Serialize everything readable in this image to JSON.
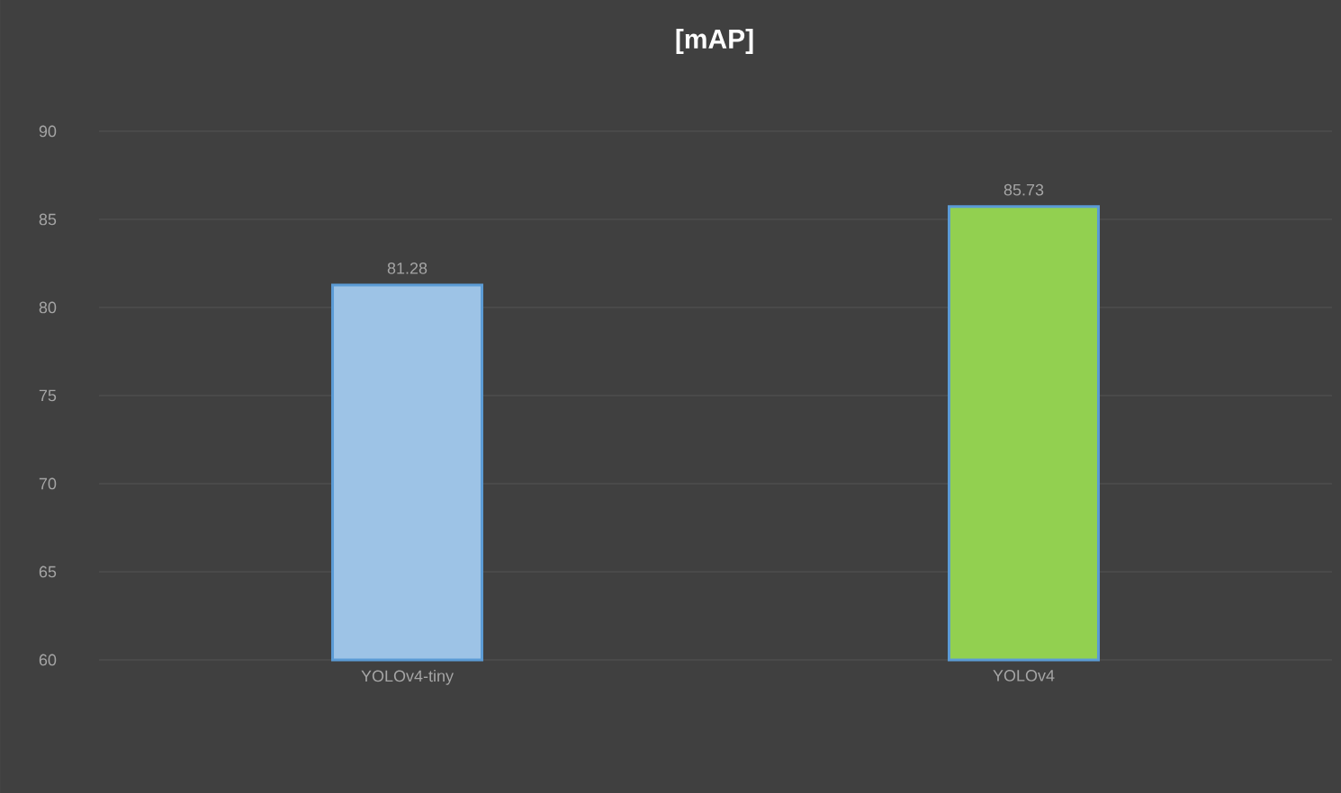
{
  "chart_data": {
    "type": "bar",
    "title": "[mAP]",
    "categories": [
      "YOLOv4-tiny",
      "YOLOv4"
    ],
    "values": [
      81.28,
      85.73
    ],
    "colors": [
      "#9dc3e6",
      "#92d050"
    ],
    "ylim": [
      60,
      90
    ],
    "yticks": [
      60,
      65,
      70,
      75,
      80,
      85,
      90
    ],
    "grid": "y",
    "data_labels": true
  }
}
